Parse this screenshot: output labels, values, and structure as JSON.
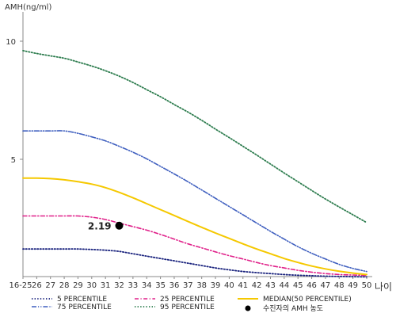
{
  "chart_data": {
    "type": "line",
    "ylabel": "AMH(ng/ml)",
    "xlabel": "나이",
    "ylim": [
      0,
      11
    ],
    "yticks": [
      5,
      10
    ],
    "categories": [
      "16-25",
      "26",
      "27",
      "28",
      "29",
      "30",
      "31",
      "32",
      "33",
      "34",
      "35",
      "36",
      "37",
      "38",
      "39",
      "40",
      "41",
      "42",
      "43",
      "44",
      "45",
      "46",
      "47",
      "48",
      "49",
      "50"
    ],
    "series": [
      {
        "name": "5 PERCENTILE",
        "color": "#1a237e",
        "dash": "dot",
        "values": [
          1.2,
          1.2,
          1.2,
          1.2,
          1.2,
          1.18,
          1.15,
          1.1,
          1.0,
          0.9,
          0.8,
          0.7,
          0.6,
          0.5,
          0.4,
          0.32,
          0.25,
          0.2,
          0.16,
          0.12,
          0.09,
          0.07,
          0.05,
          0.04,
          0.03,
          0.02
        ]
      },
      {
        "name": "25 PERCENTILE",
        "color": "#e0218a",
        "dash": "dashdot",
        "values": [
          2.6,
          2.6,
          2.6,
          2.6,
          2.6,
          2.55,
          2.45,
          2.3,
          2.15,
          2.0,
          1.82,
          1.62,
          1.42,
          1.25,
          1.08,
          0.92,
          0.78,
          0.63,
          0.5,
          0.4,
          0.3,
          0.22,
          0.16,
          0.12,
          0.1,
          0.08
        ]
      },
      {
        "name": "MEDIAN(50 PERCENTILE)",
        "color": "#f5c800",
        "dash": "solid",
        "values": [
          4.2,
          4.2,
          4.18,
          4.13,
          4.05,
          3.95,
          3.8,
          3.6,
          3.37,
          3.12,
          2.87,
          2.62,
          2.37,
          2.12,
          1.88,
          1.65,
          1.42,
          1.2,
          1.0,
          0.8,
          0.63,
          0.48,
          0.36,
          0.26,
          0.18,
          0.12
        ]
      },
      {
        "name": "75 PERCENTILE",
        "color": "#3f5fbf",
        "dash": "dashdotdot",
        "values": [
          6.2,
          6.2,
          6.2,
          6.2,
          6.1,
          5.95,
          5.78,
          5.55,
          5.3,
          5.02,
          4.7,
          4.38,
          4.05,
          3.7,
          3.35,
          3.0,
          2.65,
          2.3,
          1.95,
          1.62,
          1.3,
          1.02,
          0.78,
          0.55,
          0.38,
          0.25
        ]
      },
      {
        "name": "95 PERCENTILE",
        "color": "#2e7d4f",
        "dash": "dot",
        "values": [
          9.6,
          9.48,
          9.38,
          9.28,
          9.12,
          8.95,
          8.75,
          8.52,
          8.25,
          7.95,
          7.65,
          7.32,
          7.0,
          6.65,
          6.28,
          5.92,
          5.55,
          5.18,
          4.8,
          4.42,
          4.05,
          3.68,
          3.32,
          2.98,
          2.65,
          2.32
        ]
      }
    ],
    "marker": {
      "name": "수진자의 AMH 농도",
      "x": "32",
      "y": 2.19,
      "label": "2.19",
      "color": "#000000"
    }
  }
}
